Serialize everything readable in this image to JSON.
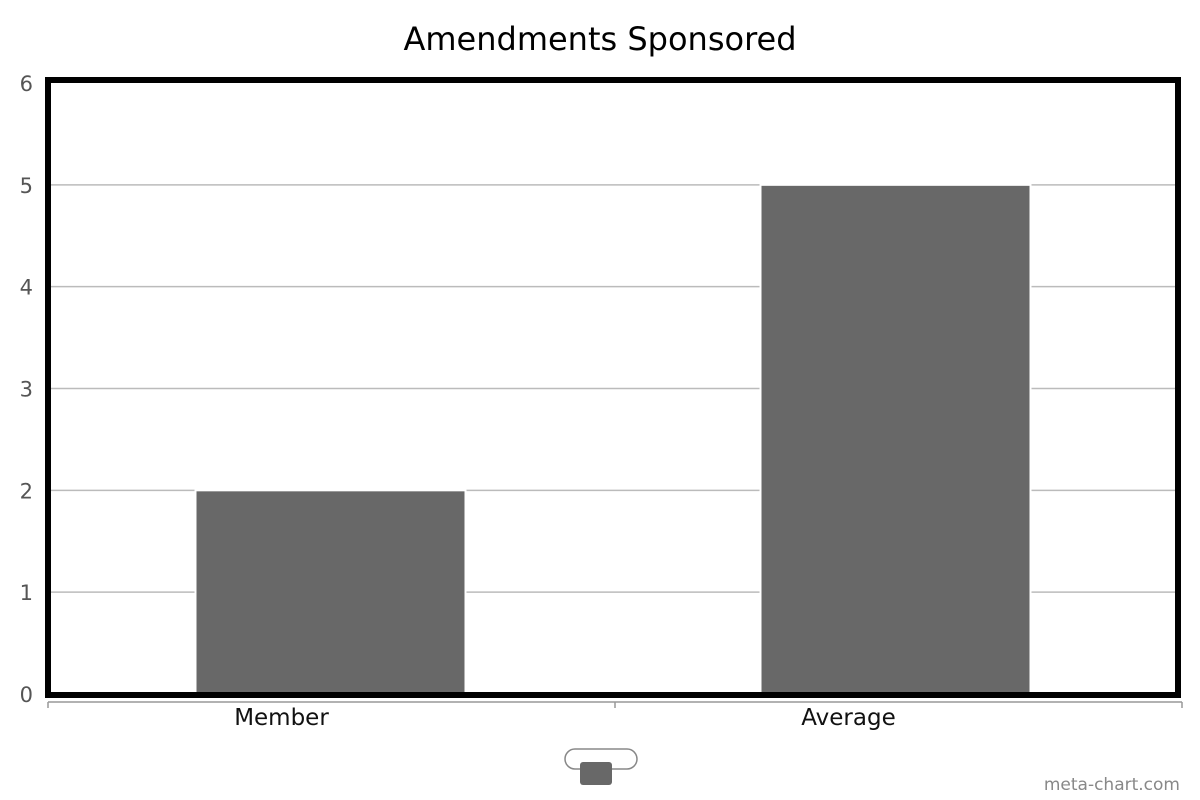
{
  "colors": {
    "bar": "#686868",
    "grid": "#bbbbbb",
    "frame": "#000000",
    "legend_border": "#888888"
  },
  "chart_data": {
    "type": "bar",
    "title": "Amendments Sponsored",
    "categories": [
      "Member",
      "Average"
    ],
    "values": [
      2,
      5
    ],
    "xlabel": "",
    "ylabel": "",
    "ylim": [
      0,
      6
    ],
    "yticks": [
      "0",
      "1",
      "2",
      "3",
      "4",
      "5",
      "6"
    ],
    "grid": true,
    "legend_placement": "bottom-center"
  },
  "footer": {
    "credit": "meta-chart.com"
  }
}
